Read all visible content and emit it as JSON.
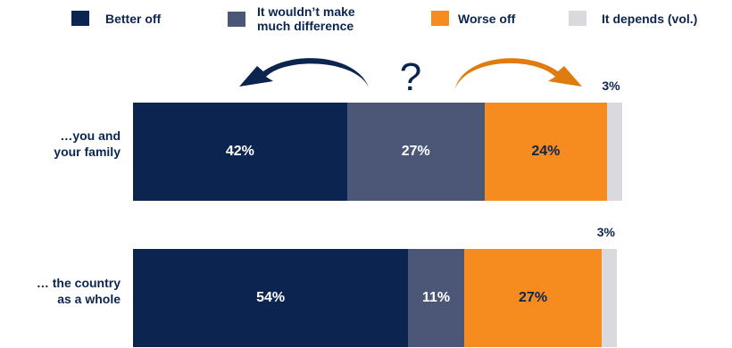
{
  "chart_data": {
    "type": "bar",
    "orientation": "horizontal",
    "stacked": true,
    "categories": [
      "…you and your family",
      "… the country as a whole"
    ],
    "series": [
      {
        "name": "Better off",
        "color": "#0c2550",
        "values": [
          42,
          54
        ],
        "labels": [
          "42%",
          "54%"
        ]
      },
      {
        "name": "It wouldn’t make much difference",
        "color": "#4c5676",
        "values": [
          27,
          11
        ],
        "labels": [
          "27%",
          "11%"
        ]
      },
      {
        "name": "Worse off",
        "color": "#f68b1f",
        "values": [
          24,
          27
        ],
        "labels": [
          "24%",
          "27%"
        ]
      },
      {
        "name": "It depends (vol.)",
        "color": "#d9d9de",
        "values": [
          3,
          3
        ],
        "labels": [
          "3%",
          "3%"
        ]
      }
    ],
    "legend_position": "top",
    "grid": false,
    "xlim": [
      0,
      96
    ]
  },
  "legend": {
    "items": [
      {
        "label": "Better off",
        "color": "#0c2550"
      },
      {
        "label": "It wouldn’t make much difference",
        "color": "#4c5676"
      },
      {
        "label": "Worse off",
        "color": "#f68b1f"
      },
      {
        "label": "It depends (vol.)",
        "color": "#d9d9de"
      }
    ]
  },
  "rows": [
    {
      "label_line1": "…you and",
      "label_line2": "your family"
    },
    {
      "label_line1": "… the country",
      "label_line2": "as a whole"
    }
  ],
  "decoration": {
    "question_mark": "?",
    "left_arrow_color": "#0c2550",
    "right_arrow_color": "#e07b10",
    "left_arrow_icon": "curved-arrow-left-icon",
    "right_arrow_icon": "curved-arrow-right-icon"
  }
}
